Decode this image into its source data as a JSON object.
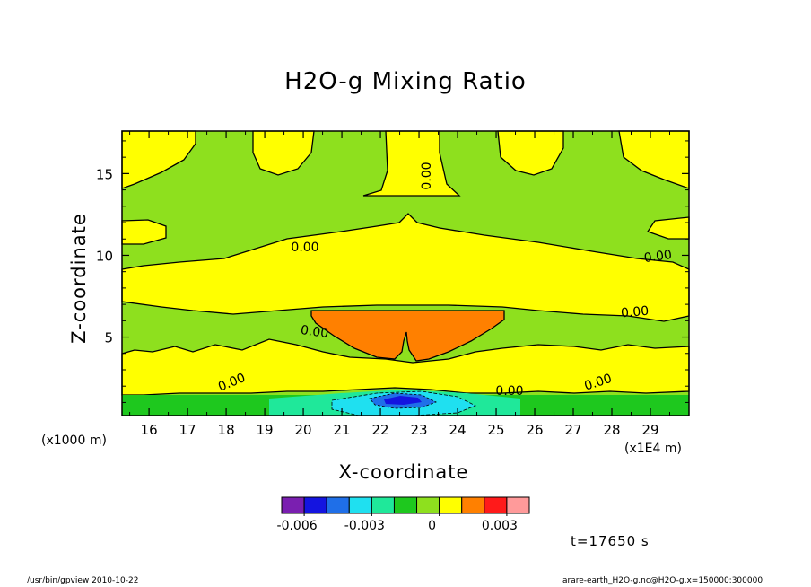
{
  "chart_data": {
    "type": "contour",
    "title": "H2O-g Mixing Ratio",
    "xlabel": "X-coordinate",
    "ylabel": "Z-coordinate",
    "x_multiplier": "(x1E4 m)",
    "y_multiplier": "(x1000 m)",
    "xlim": [
      15.3,
      30.0
    ],
    "ylim": [
      0.2,
      17.6
    ],
    "x_ticks": [
      "16",
      "17",
      "18",
      "19",
      "20",
      "21",
      "22",
      "23",
      "24",
      "25",
      "26",
      "27",
      "28",
      "29"
    ],
    "y_ticks": [
      "5",
      "10",
      "15"
    ],
    "contour_labels": [
      "0.00",
      "0.00",
      "0.00",
      "0.00",
      "0.00",
      "0.00",
      "0.00",
      "0.00"
    ],
    "colorbar": {
      "colors": [
        "#7a1fb0",
        "#1414e0",
        "#1f6fe8",
        "#1fe0f0",
        "#1fe89a",
        "#1ec81e",
        "#8ee01e",
        "#ffff00",
        "#ff8000",
        "#ff1a1a",
        "#ff9a9a"
      ],
      "tick_labels": [
        "-0.006",
        "-0.003",
        "0",
        "0.003"
      ]
    },
    "time_label": "t=17650 s",
    "background_level_color": "#8ee01e"
  },
  "footer": {
    "left": "/usr/bin/gpview   2010-10-22",
    "right": "arare-earth_H2O-g.nc@H2O-g,x=150000:300000"
  }
}
